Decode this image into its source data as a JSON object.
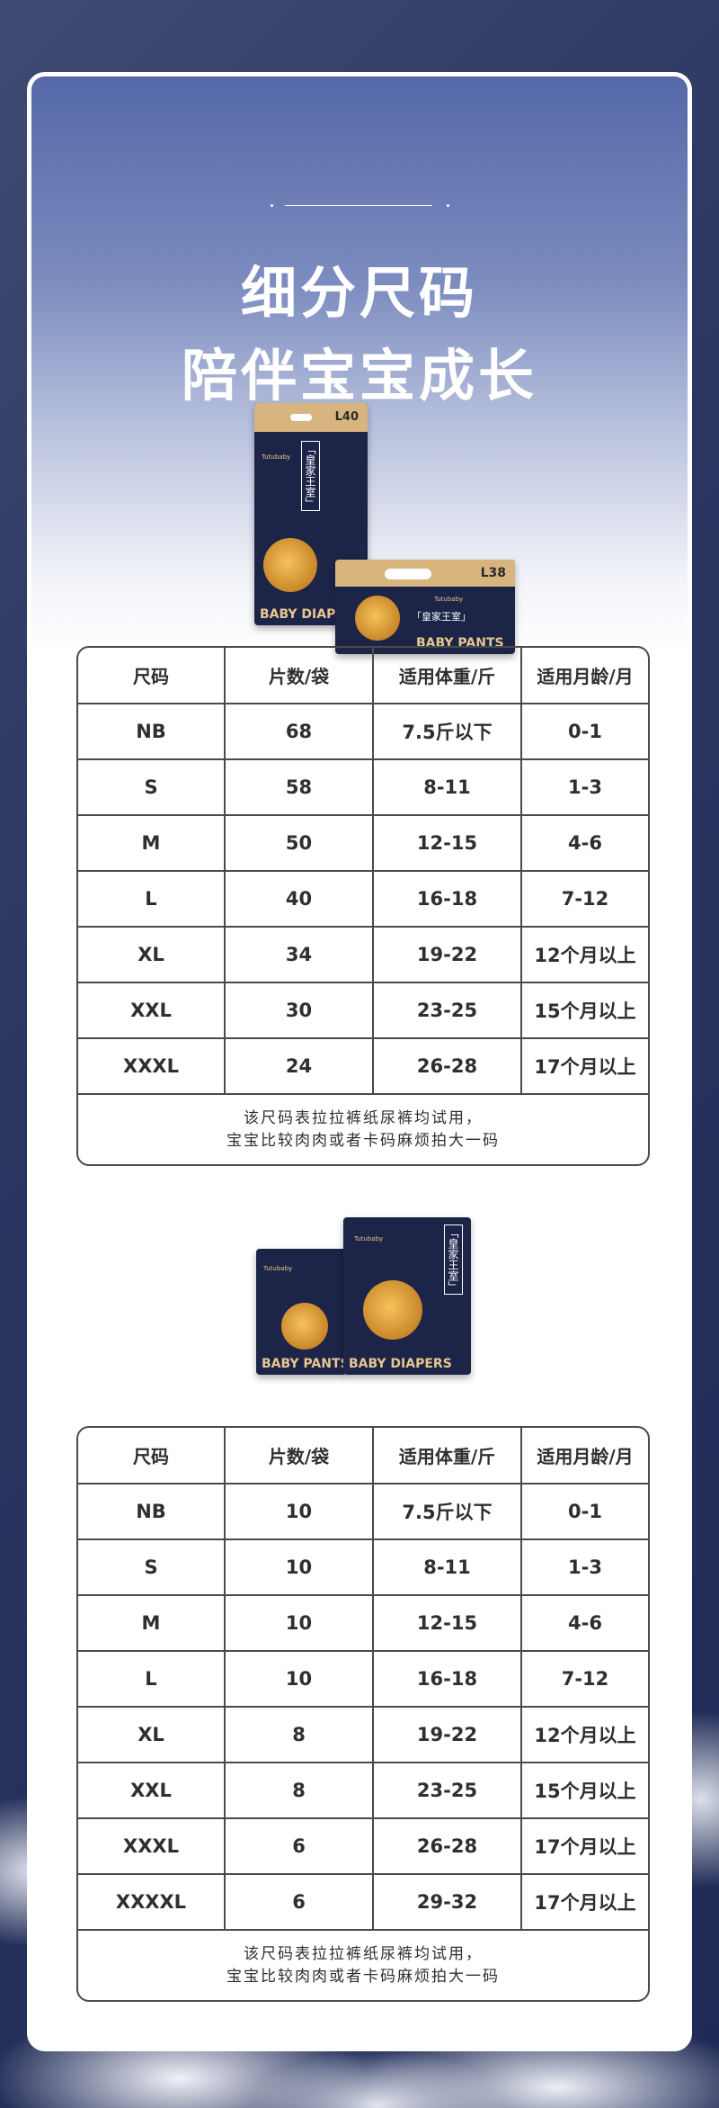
{
  "hero": {
    "title_line1": "细分尺码",
    "title_line2": "陪伴宝宝成长"
  },
  "product1": {
    "big_pack": {
      "size_label": "L40",
      "brand": "Tutubaby",
      "name": "「皇家王室」",
      "footer": "BABY DIAPERS"
    },
    "small_pack": {
      "size_label": "L38",
      "brand": "Tutubaby",
      "name": "「皇家王室」",
      "footer": "BABY PANTS"
    }
  },
  "table1": {
    "headers": [
      "尺码",
      "片数/袋",
      "适用体重/斤",
      "适用月龄/月"
    ],
    "rows": [
      [
        "NB",
        "68",
        "7.5斤以下",
        "0-1"
      ],
      [
        "S",
        "58",
        "8-11",
        "1-3"
      ],
      [
        "M",
        "50",
        "12-15",
        "4-6"
      ],
      [
        "L",
        "40",
        "16-18",
        "7-12"
      ],
      [
        "XL",
        "34",
        "19-22",
        "12个月以上"
      ],
      [
        "XXL",
        "30",
        "23-25",
        "15个月以上"
      ],
      [
        "XXXL",
        "24",
        "26-28",
        "17个月以上"
      ]
    ],
    "note_line1": "该尺码表拉拉裤纸尿裤均试用，",
    "note_line2": "宝宝比较肉肉或者卡码麻烦拍大一码"
  },
  "product2": {
    "back_pack": {
      "brand": "Tutubaby",
      "footer": "BABY PANTS"
    },
    "front_pack": {
      "brand": "Tutubaby",
      "name": "「皇家王室」",
      "footer": "BABY DIAPERS"
    }
  },
  "table2": {
    "headers": [
      "尺码",
      "片数/袋",
      "适用体重/斤",
      "适用月龄/月"
    ],
    "rows": [
      [
        "NB",
        "10",
        "7.5斤以下",
        "0-1"
      ],
      [
        "S",
        "10",
        "8-11",
        "1-3"
      ],
      [
        "M",
        "10",
        "12-15",
        "4-6"
      ],
      [
        "L",
        "10",
        "16-18",
        "7-12"
      ],
      [
        "XL",
        "8",
        "19-22",
        "12个月以上"
      ],
      [
        "XXL",
        "8",
        "23-25",
        "15个月以上"
      ],
      [
        "XXXL",
        "6",
        "26-28",
        "17个月以上"
      ],
      [
        "XXXXL",
        "6",
        "29-32",
        "17个月以上"
      ]
    ],
    "note_line1": "该尺码表拉拉裤纸尿裤均试用，",
    "note_line2": "宝宝比较肉肉或者卡码麻烦拍大一码"
  },
  "colors": {
    "background": "#243060",
    "card_top": "#5568a8",
    "table_border": "#4a4a4a",
    "text": "#2f2f2f"
  }
}
